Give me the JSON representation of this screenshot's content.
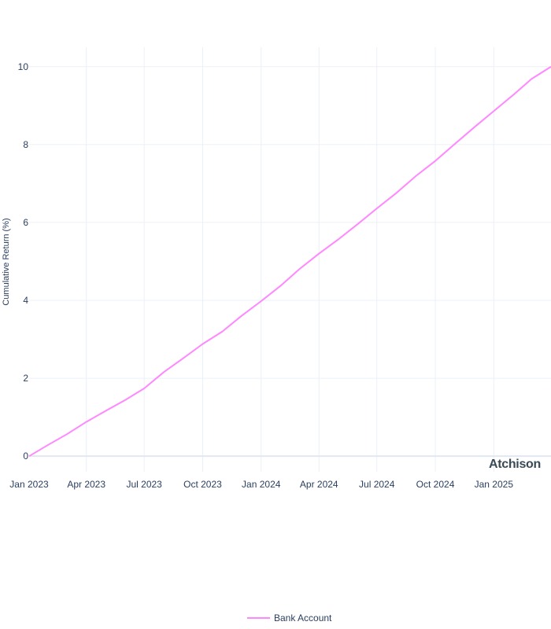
{
  "chart_data": {
    "type": "line",
    "title": "",
    "xlabel": "",
    "ylabel": "Cumulative Return (%)",
    "xlim": [
      "2023-01-01",
      "2025-04-01"
    ],
    "ylim": [
      -0.4,
      10.5
    ],
    "grid": true,
    "legend_position": "bottom-center",
    "x_ticks": [
      {
        "date": "2023-01-01",
        "label": "Jan 2023"
      },
      {
        "date": "2023-04-01",
        "label": "Apr 2023"
      },
      {
        "date": "2023-07-01",
        "label": "Jul 2023"
      },
      {
        "date": "2023-10-01",
        "label": "Oct 2023"
      },
      {
        "date": "2024-01-01",
        "label": "Jan 2024"
      },
      {
        "date": "2024-04-01",
        "label": "Apr 2024"
      },
      {
        "date": "2024-07-01",
        "label": "Jul 2024"
      },
      {
        "date": "2024-10-01",
        "label": "Oct 2024"
      },
      {
        "date": "2025-01-01",
        "label": "Jan 2025"
      }
    ],
    "y_ticks": [
      0,
      2,
      4,
      6,
      8,
      10
    ],
    "series": [
      {
        "name": "Bank Account",
        "color": "#ff88ff",
        "points": [
          {
            "x": "2023-01-01",
            "y": 0.0
          },
          {
            "x": "2023-02-01",
            "y": 0.3
          },
          {
            "x": "2023-03-01",
            "y": 0.56
          },
          {
            "x": "2023-04-01",
            "y": 0.88
          },
          {
            "x": "2023-05-01",
            "y": 1.16
          },
          {
            "x": "2023-06-01",
            "y": 1.44
          },
          {
            "x": "2023-07-01",
            "y": 1.74
          },
          {
            "x": "2023-08-01",
            "y": 2.16
          },
          {
            "x": "2023-09-01",
            "y": 2.52
          },
          {
            "x": "2023-10-01",
            "y": 2.88
          },
          {
            "x": "2023-11-01",
            "y": 3.2
          },
          {
            "x": "2023-12-01",
            "y": 3.6
          },
          {
            "x": "2024-01-01",
            "y": 3.98
          },
          {
            "x": "2024-02-01",
            "y": 4.38
          },
          {
            "x": "2024-03-01",
            "y": 4.8
          },
          {
            "x": "2024-04-01",
            "y": 5.2
          },
          {
            "x": "2024-05-01",
            "y": 5.56
          },
          {
            "x": "2024-06-01",
            "y": 5.96
          },
          {
            "x": "2024-07-01",
            "y": 6.36
          },
          {
            "x": "2024-08-01",
            "y": 6.76
          },
          {
            "x": "2024-09-01",
            "y": 7.2
          },
          {
            "x": "2024-10-01",
            "y": 7.58
          },
          {
            "x": "2024-11-01",
            "y": 8.02
          },
          {
            "x": "2024-12-01",
            "y": 8.44
          },
          {
            "x": "2025-01-01",
            "y": 8.86
          },
          {
            "x": "2025-02-01",
            "y": 9.28
          },
          {
            "x": "2025-03-01",
            "y": 9.68
          },
          {
            "x": "2025-04-01",
            "y": 10.0
          }
        ]
      }
    ]
  },
  "watermark": "Atchison"
}
